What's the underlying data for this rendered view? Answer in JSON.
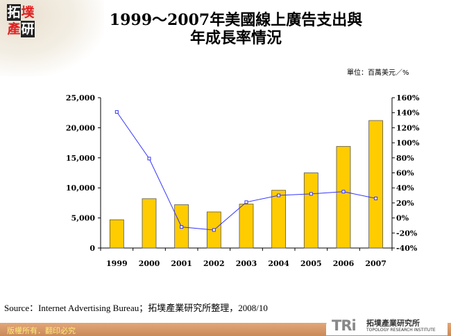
{
  "logo": {
    "chars": [
      "拓",
      "墣",
      "產",
      "研"
    ]
  },
  "unit_label": "單位：百萬美元／%",
  "source": "Source：Internet Advertising Bureau；拓墣產業研究所整理，2008/10",
  "footer": {
    "copyright": "版權所有．翻印必究",
    "org_mark": "TRi",
    "org_name_cn": "拓墣產業研究所",
    "org_name_en": "TOPOLOGY RESEARCH INSTITUTE"
  },
  "chart_data": {
    "type": "bar+line",
    "title_line1": "1999～2007年美國線上廣告支出與",
    "title_line2": "年成長率情況",
    "categories": [
      "1999",
      "2000",
      "2001",
      "2002",
      "2003",
      "2004",
      "2005",
      "2006",
      "2007"
    ],
    "series": [
      {
        "type": "bar",
        "axis": "left",
        "color": "#FFCC00",
        "values": [
          4700,
          8200,
          7200,
          6000,
          7300,
          9600,
          12500,
          16900,
          21200
        ]
      },
      {
        "type": "line",
        "axis": "right",
        "color": "#3333FF",
        "values": [
          141,
          79,
          -12,
          -16,
          21,
          30,
          32,
          35,
          26
        ]
      }
    ],
    "left_axis": {
      "range": [
        0,
        25000
      ],
      "ticks": [
        "0",
        "5,000",
        "10,000",
        "15,000",
        "20,000",
        "25,000"
      ]
    },
    "right_axis": {
      "range": [
        -40,
        160
      ],
      "ticks": [
        "-40%",
        "-20%",
        "0%",
        "20%",
        "40%",
        "60%",
        "80%",
        "100%",
        "120%",
        "140%",
        "160%"
      ]
    },
    "grid": false,
    "legend": "none"
  }
}
